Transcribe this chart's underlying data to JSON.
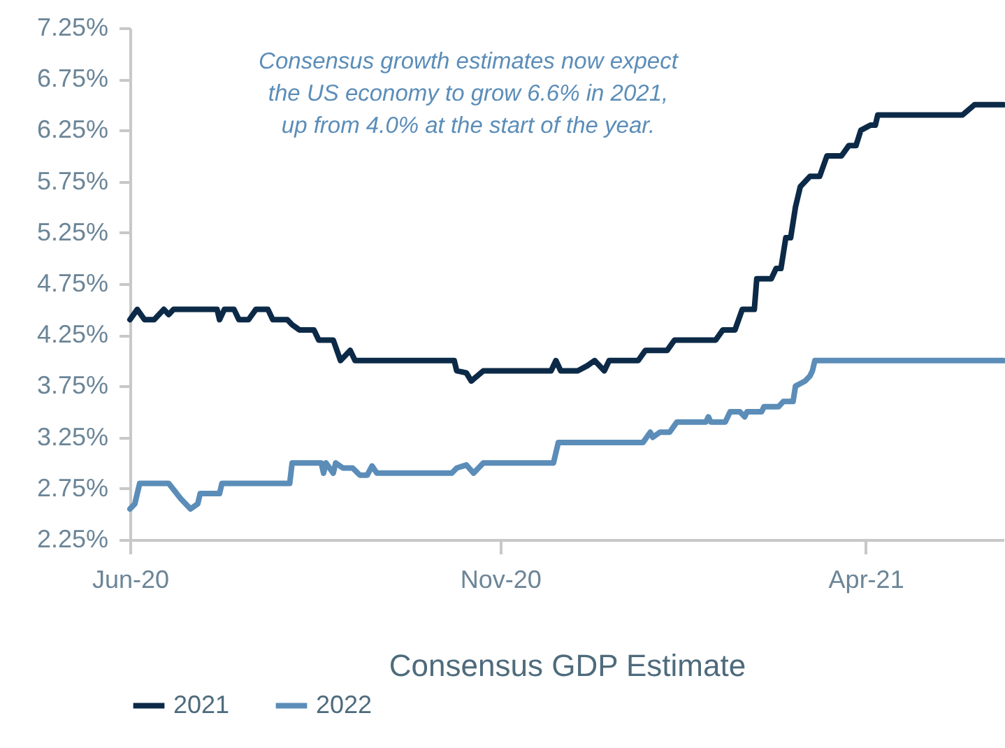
{
  "chart_data": {
    "type": "line",
    "xlabel": "Consensus GDP Estimate",
    "annotations": [
      "Consensus growth estimates now expect\nthe US economy to grow 6.6% in 2021,\nup from 4.0% at the start of the year."
    ],
    "xlim": [
      "2020-06-01",
      "2021-05-28"
    ],
    "xticks": [
      {
        "value": "2020-06-01",
        "label": "Jun-20"
      },
      {
        "value": "2020-11-01",
        "label": "Nov-20"
      },
      {
        "value": "2021-04-01",
        "label": "Apr-21"
      }
    ],
    "ylim": [
      2.25,
      7.25
    ],
    "yticks": [
      {
        "value": 2.25,
        "label": "2.25%"
      },
      {
        "value": 2.75,
        "label": "2.75%"
      },
      {
        "value": 3.25,
        "label": "3.25%"
      },
      {
        "value": 3.75,
        "label": "3.75%"
      },
      {
        "value": 4.25,
        "label": "4.25%"
      },
      {
        "value": 4.75,
        "label": "4.75%"
      },
      {
        "value": 5.25,
        "label": "5.25%"
      },
      {
        "value": 5.75,
        "label": "5.75%"
      },
      {
        "value": 6.25,
        "label": "6.25%"
      },
      {
        "value": 6.75,
        "label": "6.75%"
      },
      {
        "value": 7.25,
        "label": "7.25%"
      }
    ],
    "grid": false,
    "legend": "bottom",
    "marker": "none",
    "line_style": "solid",
    "series": [
      {
        "name": "2021",
        "color": "#0c2a47",
        "x": [
          "2020-06-01",
          "2020-06-04",
          "2020-06-07",
          "2020-06-11",
          "2020-06-15",
          "2020-06-17",
          "2020-06-19",
          "2020-07-07",
          "2020-07-08",
          "2020-07-10",
          "2020-07-14",
          "2020-07-16",
          "2020-07-20",
          "2020-07-23",
          "2020-07-28",
          "2020-07-30",
          "2020-08-05",
          "2020-08-07",
          "2020-08-10",
          "2020-08-16",
          "2020-08-18",
          "2020-08-24",
          "2020-08-27",
          "2020-08-31",
          "2020-09-02",
          "2020-10-13",
          "2020-10-14",
          "2020-10-18",
          "2020-10-20",
          "2020-10-25",
          "2020-11-22",
          "2020-11-24",
          "2020-11-26",
          "2020-11-30",
          "2020-12-03",
          "2020-12-07",
          "2020-12-10",
          "2020-12-14",
          "2020-12-16",
          "2020-12-28",
          "2020-12-31",
          "2021-01-09",
          "2021-01-12",
          "2021-01-29",
          "2021-02-01",
          "2021-02-06",
          "2021-02-09",
          "2021-02-14",
          "2021-02-15",
          "2021-02-21",
          "2021-02-23",
          "2021-02-25",
          "2021-02-27",
          "2021-03-01",
          "2021-03-03",
          "2021-03-05",
          "2021-03-09",
          "2021-03-13",
          "2021-03-16",
          "2021-03-22",
          "2021-03-25",
          "2021-03-28",
          "2021-03-30",
          "2021-04-03",
          "2021-04-05",
          "2021-04-06",
          "2021-05-11",
          "2021-05-16",
          "2021-05-28"
        ],
        "values": [
          4.4,
          4.5,
          4.4,
          4.4,
          4.5,
          4.45,
          4.5,
          4.5,
          4.4,
          4.5,
          4.5,
          4.4,
          4.4,
          4.5,
          4.5,
          4.4,
          4.4,
          4.35,
          4.3,
          4.3,
          4.2,
          4.2,
          4.0,
          4.1,
          4.0,
          4.0,
          3.9,
          3.88,
          3.8,
          3.9,
          3.9,
          4.0,
          3.9,
          3.9,
          3.9,
          3.95,
          4.0,
          3.9,
          4.0,
          4.0,
          4.1,
          4.1,
          4.2,
          4.2,
          4.3,
          4.3,
          4.5,
          4.5,
          4.8,
          4.8,
          4.9,
          4.9,
          5.2,
          5.2,
          5.5,
          5.7,
          5.8,
          5.8,
          6.0,
          6.0,
          6.1,
          6.1,
          6.25,
          6.3,
          6.3,
          6.4,
          6.4,
          6.5,
          6.5
        ]
      },
      {
        "name": "2022",
        "color": "#5b8db8",
        "x": [
          "2020-06-01",
          "2020-06-03",
          "2020-06-05",
          "2020-06-17",
          "2020-06-22",
          "2020-06-24",
          "2020-06-26",
          "2020-06-29",
          "2020-06-30",
          "2020-07-08",
          "2020-07-09",
          "2020-08-06",
          "2020-08-07",
          "2020-08-19",
          "2020-08-20",
          "2020-08-21",
          "2020-08-24",
          "2020-08-25",
          "2020-08-28",
          "2020-09-01",
          "2020-09-04",
          "2020-09-07",
          "2020-09-09",
          "2020-09-11",
          "2020-10-12",
          "2020-10-14",
          "2020-10-18",
          "2020-10-21",
          "2020-10-25",
          "2020-11-23",
          "2020-11-25",
          "2020-12-30",
          "2021-01-02",
          "2021-01-03",
          "2021-01-06",
          "2021-01-10",
          "2021-01-13",
          "2021-01-25",
          "2021-01-26",
          "2021-01-27",
          "2021-02-02",
          "2021-02-04",
          "2021-02-08",
          "2021-02-10",
          "2021-02-11",
          "2021-02-17",
          "2021-02-18",
          "2021-02-24",
          "2021-02-26",
          "2021-03-02",
          "2021-03-03",
          "2021-03-07",
          "2021-03-09",
          "2021-03-10",
          "2021-03-11",
          "2021-05-28"
        ],
        "values": [
          2.55,
          2.6,
          2.8,
          2.8,
          2.65,
          2.6,
          2.55,
          2.6,
          2.7,
          2.7,
          2.8,
          2.8,
          3.0,
          3.0,
          2.9,
          3.0,
          2.9,
          3.0,
          2.95,
          2.95,
          2.88,
          2.88,
          2.97,
          2.9,
          2.9,
          2.95,
          2.98,
          2.9,
          3.0,
          3.0,
          3.2,
          3.2,
          3.3,
          3.25,
          3.3,
          3.3,
          3.4,
          3.4,
          3.45,
          3.4,
          3.4,
          3.5,
          3.5,
          3.45,
          3.5,
          3.5,
          3.55,
          3.55,
          3.6,
          3.6,
          3.75,
          3.8,
          3.85,
          3.9,
          4.0,
          4.0
        ]
      }
    ]
  }
}
